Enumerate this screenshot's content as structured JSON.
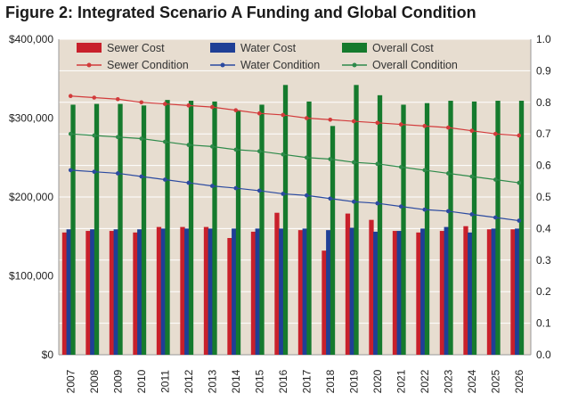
{
  "chart_data": {
    "type": "bar",
    "title": "Figure 2: Integrated Scenario A Funding and Global Condition",
    "xlabel": "",
    "ylabel": "",
    "categories": [
      "2007",
      "2008",
      "2009",
      "2010",
      "2011",
      "2012",
      "2013",
      "2014",
      "2015",
      "2016",
      "2017",
      "2018",
      "2019",
      "2020",
      "2021",
      "2022",
      "2023",
      "2024",
      "2025",
      "2026"
    ],
    "ylim": [
      0,
      400000
    ],
    "y2lim": [
      0,
      1.0
    ],
    "y_ticks": [
      "$0",
      "$100,000",
      "$200,000",
      "$300,000",
      "$400,000"
    ],
    "y2_ticks": [
      "0.0",
      "0.1",
      "0.2",
      "0.3",
      "0.4",
      "0.5",
      "0.6",
      "0.7",
      "0.8",
      "0.9",
      "1.0"
    ],
    "grid": true,
    "legend_position": "top",
    "bar_series": [
      {
        "name": "Sewer Cost",
        "color": "#c8202b",
        "values": [
          155000,
          157000,
          157000,
          155000,
          162000,
          162000,
          162000,
          148000,
          156000,
          180000,
          158000,
          132000,
          179000,
          171000,
          157000,
          155000,
          157000,
          163000,
          159000,
          159000
        ]
      },
      {
        "name": "Water Cost",
        "color": "#1f3f96",
        "values": [
          159000,
          159000,
          159000,
          159000,
          160000,
          160000,
          160000,
          160000,
          160000,
          160000,
          160000,
          158000,
          161000,
          156000,
          157000,
          160000,
          162000,
          155000,
          160000,
          160000
        ]
      },
      {
        "name": "Overall Cost",
        "color": "#157a2d",
        "values": [
          317000,
          318000,
          318000,
          316000,
          323000,
          322000,
          321000,
          310000,
          317000,
          342000,
          321000,
          290000,
          342000,
          329000,
          317000,
          319000,
          322000,
          321000,
          322000,
          322000
        ]
      }
    ],
    "line_series": [
      {
        "name": "Sewer Condition",
        "color": "#d23b3b",
        "values": [
          0.82,
          0.815,
          0.81,
          0.8,
          0.795,
          0.79,
          0.785,
          0.775,
          0.765,
          0.76,
          0.75,
          0.745,
          0.74,
          0.735,
          0.73,
          0.725,
          0.72,
          0.71,
          0.7,
          0.695
        ]
      },
      {
        "name": "Water Condition",
        "color": "#2b4aa0",
        "values": [
          0.585,
          0.58,
          0.575,
          0.565,
          0.555,
          0.545,
          0.535,
          0.528,
          0.52,
          0.51,
          0.505,
          0.495,
          0.485,
          0.48,
          0.47,
          0.46,
          0.455,
          0.445,
          0.435,
          0.425
        ]
      },
      {
        "name": "Overall Condition",
        "color": "#2e8a4a",
        "values": [
          0.7,
          0.695,
          0.69,
          0.685,
          0.675,
          0.665,
          0.66,
          0.65,
          0.645,
          0.635,
          0.625,
          0.62,
          0.61,
          0.605,
          0.595,
          0.585,
          0.575,
          0.565,
          0.555,
          0.545
        ]
      }
    ],
    "colors": {
      "plot_background": "#e7ddd0",
      "gridline": "#ffffff"
    }
  }
}
